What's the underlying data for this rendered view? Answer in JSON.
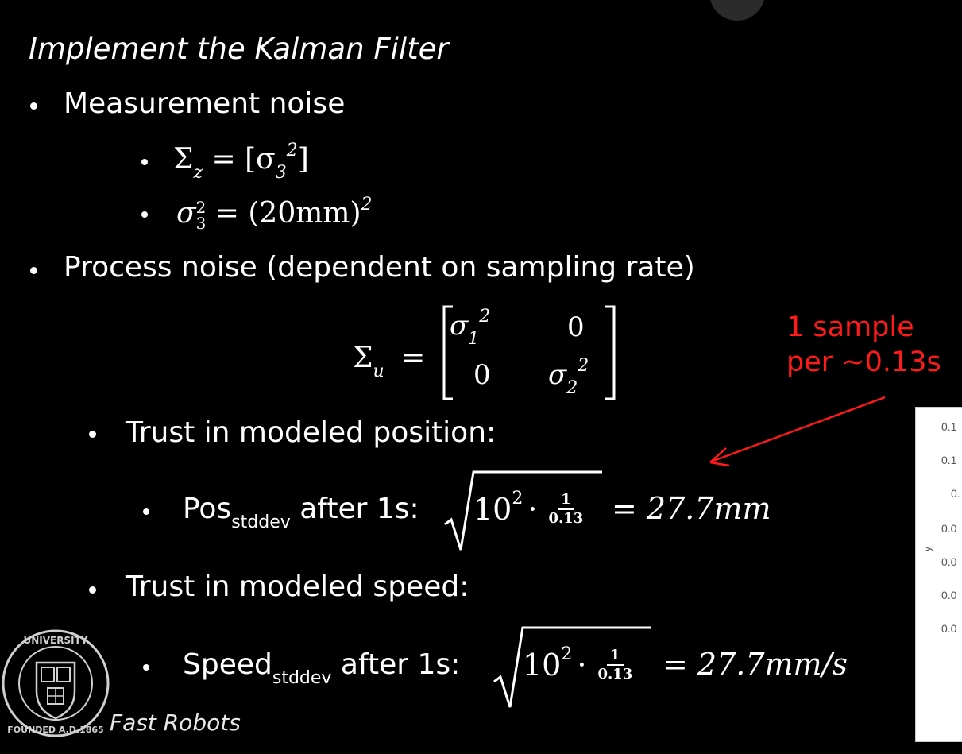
{
  "slide": {
    "title": "Implement the Kalman Filter",
    "measurement_noise": {
      "heading": "Measurement noise",
      "eq1": {
        "lhs": "Σ",
        "lhs_sub": "z",
        "rhs": "= [σ",
        "rhs_sub": "3",
        "rhs_sup": "2",
        "rhs_end": "]"
      },
      "eq2": {
        "lhs": "σ",
        "lhs_sub": "3",
        "lhs_sup": "2",
        "rhs": "= (20mm)",
        "rhs_sup": "2"
      }
    },
    "process_noise": {
      "heading": "Process noise (dependent on sampling rate)",
      "matrix": {
        "lhs": "Σ",
        "lhs_sub": "u",
        "eq": "=",
        "m11": "σ",
        "m11_sub": "1",
        "m11_sup": "2",
        "m12": "0",
        "m21": "0",
        "m22": "σ",
        "m22_sub": "2",
        "m22_sup": "2"
      },
      "position": {
        "heading": "Trust in modeled position:",
        "label_main": "Pos",
        "label_sub": "stddev",
        "label_rest": " after 1s:",
        "base": "10",
        "sup": "2",
        "times": "·",
        "frac_num": "1",
        "frac_den": "0.13",
        "result": "= 27.7mm"
      },
      "speed": {
        "heading": "Trust in modeled speed:",
        "label_main": "Speed",
        "label_sub": "stddev",
        "label_rest": " after 1s:",
        "base": "10",
        "sup": "2",
        "times": "·",
        "frac_num": "1",
        "frac_den": "0.13",
        "result": "= 27.7mm/s"
      }
    },
    "annotation": {
      "line1": "1 sample",
      "line2": "per ~0.13s",
      "color": "#ff1a1a"
    },
    "inset_plot": {
      "ylabel": "y",
      "ticks": [
        "0.1",
        "0.1",
        "0.",
        "0.0",
        "0.0",
        "0.0",
        "0.0"
      ]
    },
    "footer": {
      "text": "Fast Robots",
      "logo_name": "Cornell University seal"
    }
  }
}
